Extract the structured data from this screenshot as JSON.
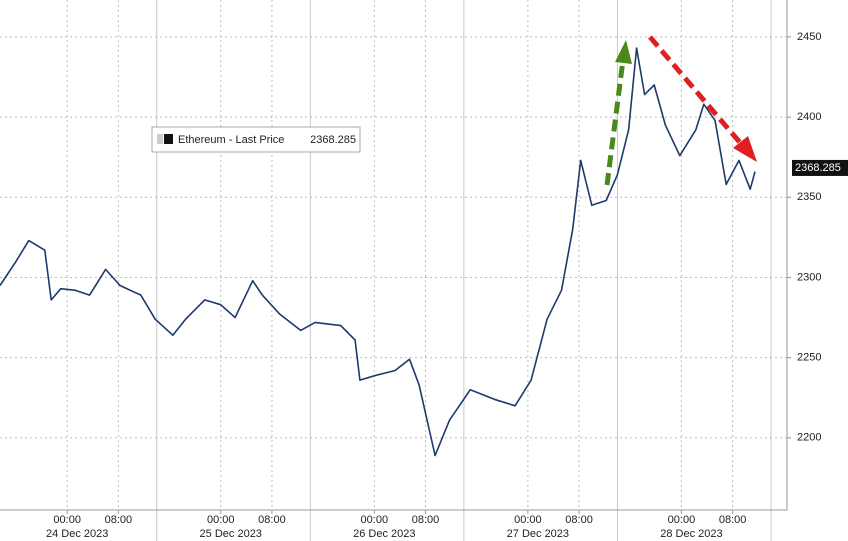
{
  "chart_data": {
    "type": "line",
    "series": [
      {
        "name": "Ethereum - Last Price",
        "color": "#1d3a6b",
        "values": [
          2295,
          2310,
          2323,
          2317,
          2286,
          2293,
          2292,
          2289,
          2305,
          2295,
          2289,
          2274,
          2264,
          2274,
          2286,
          2283,
          2275,
          2298,
          2289,
          2277,
          2267,
          2272,
          2270,
          2261,
          2236,
          2239,
          2242,
          2249,
          2233,
          2189,
          2211,
          2230,
          2224,
          2220,
          2236,
          2274,
          2292,
          2330,
          2373,
          2345,
          2348,
          2364,
          2392,
          2443,
          2414,
          2420,
          2395,
          2376,
          2392,
          2408,
          2398,
          2358,
          2373,
          2355,
          2366
        ]
      }
    ],
    "x": [
      "2023-12-23T13:30",
      "2023-12-23T16:00",
      "2023-12-23T18:00",
      "2023-12-23T20:30",
      "2023-12-23T21:30",
      "2023-12-23T23:00",
      "2023-12-24T01:15",
      "2023-12-24T03:30",
      "2023-12-24T06:00",
      "2023-12-24T08:15",
      "2023-12-24T11:30",
      "2023-12-24T13:45",
      "2023-12-24T16:30",
      "2023-12-24T18:30",
      "2023-12-24T21:30",
      "2023-12-25T00:00",
      "2023-12-25T02:15",
      "2023-12-25T05:00",
      "2023-12-25T06:30",
      "2023-12-25T09:15",
      "2023-12-25T12:30",
      "2023-12-25T14:45",
      "2023-12-25T18:45",
      "2023-12-25T21:00",
      "2023-12-25T21:45",
      "2023-12-26T00:15",
      "2023-12-26T03:15",
      "2023-12-26T05:30",
      "2023-12-26T07:00",
      "2023-12-26T09:30",
      "2023-12-26T11:45",
      "2023-12-26T15:00",
      "2023-12-26T18:45",
      "2023-12-26T22:00",
      "2023-12-27T00:30",
      "2023-12-27T03:00",
      "2023-12-27T05:15",
      "2023-12-27T07:00",
      "2023-12-27T08:15",
      "2023-12-27T10:00",
      "2023-12-27T12:15",
      "2023-12-27T14:00",
      "2023-12-27T15:45",
      "2023-12-27T17:00",
      "2023-12-27T18:15",
      "2023-12-27T19:45",
      "2023-12-27T21:30",
      "2023-12-27T23:45",
      "2023-12-28T02:15",
      "2023-12-28T03:30",
      "2023-12-28T05:15",
      "2023-12-28T07:00",
      "2023-12-28T09:00",
      "2023-12-28T10:45",
      "2023-12-28T11:30"
    ],
    "xlim": [
      "2023-12-23T13:30",
      "2023-12-28T16:30"
    ],
    "xticks": [
      {
        "value": "2023-12-24T00:00",
        "label": "00:00"
      },
      {
        "value": "2023-12-24T08:00",
        "label": "08:00"
      },
      {
        "value": "2023-12-25T00:00",
        "label": "00:00"
      },
      {
        "value": "2023-12-25T08:00",
        "label": "08:00"
      },
      {
        "value": "2023-12-26T00:00",
        "label": "00:00"
      },
      {
        "value": "2023-12-26T08:00",
        "label": "08:00"
      },
      {
        "value": "2023-12-27T00:00",
        "label": "00:00"
      },
      {
        "value": "2023-12-27T08:00",
        "label": "08:00"
      },
      {
        "value": "2023-12-28T00:00",
        "label": "00:00"
      },
      {
        "value": "2023-12-28T08:00",
        "label": "08:00"
      }
    ],
    "x_group_labels": [
      {
        "value": "2023-12-24T00:00",
        "label": "24 Dec 2023"
      },
      {
        "value": "2023-12-25T00:00",
        "label": "25 Dec 2023"
      },
      {
        "value": "2023-12-26T00:00",
        "label": "26 Dec 2023"
      },
      {
        "value": "2023-12-27T00:00",
        "label": "27 Dec 2023"
      },
      {
        "value": "2023-12-28T00:00",
        "label": "28 Dec 2023"
      }
    ],
    "ylim": [
      2155,
      2473
    ],
    "yticks": [
      2200,
      2250,
      2300,
      2350,
      2400,
      2450
    ],
    "last_price": 2368.285,
    "grid": true
  }
}
